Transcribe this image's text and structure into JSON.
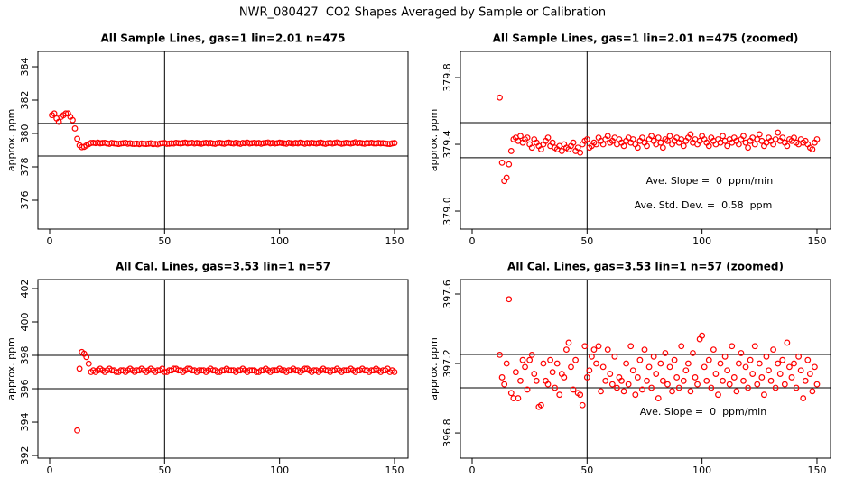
{
  "title": "NWR_080427  CO2 Shapes Averaged by Sample or Calibration",
  "chart_data": [
    {
      "type": "scatter",
      "title": "All Sample Lines, gas=1 lin=2.01 n=475",
      "ylabel": "approx. ppm",
      "color": "#ff0000",
      "xlim": [
        -5.1,
        155.9
      ],
      "ylim": [
        374.27,
        384.92
      ],
      "xticks": [
        0,
        50,
        100,
        150
      ],
      "yticks": [
        376,
        378,
        380,
        382,
        384
      ],
      "hlines": [
        380.6,
        378.65
      ],
      "vline": 50,
      "annotations": [],
      "x": [
        1,
        2,
        3,
        4,
        5,
        6,
        7,
        8,
        9,
        10,
        11,
        12,
        13,
        14,
        15,
        16,
        17,
        18,
        19,
        20,
        21,
        22,
        23,
        24,
        25,
        26,
        27,
        28,
        29,
        30,
        31,
        32,
        33,
        34,
        35,
        36,
        37,
        38,
        39,
        40,
        41,
        42,
        43,
        44,
        45,
        46,
        47,
        48,
        49,
        50,
        51,
        52,
        53,
        54,
        55,
        56,
        57,
        58,
        59,
        60,
        61,
        62,
        63,
        64,
        65,
        66,
        67,
        68,
        69,
        70,
        71,
        72,
        73,
        74,
        75,
        76,
        77,
        78,
        79,
        80,
        81,
        82,
        83,
        84,
        85,
        86,
        87,
        88,
        89,
        90,
        91,
        92,
        93,
        94,
        95,
        96,
        97,
        98,
        99,
        100,
        101,
        102,
        103,
        104,
        105,
        106,
        107,
        108,
        109,
        110,
        111,
        112,
        113,
        114,
        115,
        116,
        117,
        118,
        119,
        120,
        121,
        122,
        123,
        124,
        125,
        126,
        127,
        128,
        129,
        130,
        131,
        132,
        133,
        134,
        135,
        136,
        137,
        138,
        139,
        140,
        141,
        142,
        143,
        144,
        145,
        146,
        147,
        148,
        149,
        150
      ],
      "values": [
        381.1,
        381.2,
        380.9,
        380.7,
        381.0,
        381.1,
        381.2,
        381.2,
        381.0,
        380.8,
        380.3,
        379.68,
        379.29,
        379.18,
        379.2,
        379.28,
        379.36,
        379.43,
        379.44,
        379.42,
        379.45,
        379.41,
        379.43,
        379.44,
        379.4,
        379.38,
        379.43,
        379.41,
        379.39,
        379.37,
        379.4,
        379.42,
        379.44,
        379.39,
        379.41,
        379.38,
        379.37,
        379.39,
        379.36,
        379.4,
        379.38,
        379.37,
        379.39,
        379.41,
        379.36,
        379.38,
        379.35,
        379.4,
        379.42,
        379.43,
        379.38,
        379.39,
        379.41,
        379.4,
        379.44,
        379.42,
        379.4,
        379.43,
        379.45,
        379.41,
        379.42,
        379.44,
        379.4,
        379.43,
        379.41,
        379.39,
        379.42,
        379.44,
        379.41,
        379.43,
        379.4,
        379.38,
        379.42,
        379.44,
        379.41,
        379.39,
        379.43,
        379.45,
        379.42,
        379.4,
        379.44,
        379.41,
        379.38,
        379.43,
        379.42,
        379.45,
        379.4,
        379.42,
        379.44,
        379.41,
        379.43,
        379.39,
        379.42,
        379.44,
        379.46,
        379.41,
        379.43,
        379.4,
        379.42,
        379.45,
        379.43,
        379.41,
        379.39,
        379.44,
        379.42,
        379.4,
        379.43,
        379.41,
        379.45,
        379.42,
        379.39,
        379.43,
        379.41,
        379.44,
        379.42,
        379.4,
        379.43,
        379.45,
        379.41,
        379.38,
        379.42,
        379.44,
        379.4,
        379.43,
        379.46,
        379.42,
        379.39,
        379.41,
        379.44,
        379.42,
        379.4,
        379.43,
        379.47,
        379.42,
        379.44,
        379.41,
        379.39,
        379.43,
        379.42,
        379.44,
        379.41,
        379.4,
        379.43,
        379.41,
        379.42,
        379.4,
        379.38,
        379.37,
        379.41,
        379.43
      ]
    },
    {
      "type": "scatter",
      "title": "All Sample Lines, gas=1 lin=2.01 n=475 (zoomed)",
      "ylabel": "approx. ppm",
      "color": "#ff0000",
      "xlim": [
        -5.1,
        155.9
      ],
      "ylim": [
        378.892,
        379.957
      ],
      "xticks": [
        0,
        50,
        100,
        150
      ],
      "yticks": [
        {
          "value": 379,
          "label": "379.0"
        },
        379.4,
        379.8
      ],
      "hlines": [
        379.53,
        379.32
      ],
      "vline": 50,
      "annotations": [
        "Ave. Slope =  0  ppm/min",
        "Ave. Std. Dev. =  0.58  ppm"
      ],
      "x": [
        12,
        13,
        14,
        15,
        16,
        17,
        18,
        19,
        20,
        21,
        22,
        23,
        24,
        25,
        26,
        27,
        28,
        29,
        30,
        31,
        32,
        33,
        34,
        35,
        36,
        37,
        38,
        39,
        40,
        41,
        42,
        43,
        44,
        45,
        46,
        47,
        48,
        49,
        50,
        51,
        52,
        53,
        54,
        55,
        56,
        57,
        58,
        59,
        60,
        61,
        62,
        63,
        64,
        65,
        66,
        67,
        68,
        69,
        70,
        71,
        72,
        73,
        74,
        75,
        76,
        77,
        78,
        79,
        80,
        81,
        82,
        83,
        84,
        85,
        86,
        87,
        88,
        89,
        90,
        91,
        92,
        93,
        94,
        95,
        96,
        97,
        98,
        99,
        100,
        101,
        102,
        103,
        104,
        105,
        106,
        107,
        108,
        109,
        110,
        111,
        112,
        113,
        114,
        115,
        116,
        117,
        118,
        119,
        120,
        121,
        122,
        123,
        124,
        125,
        126,
        127,
        128,
        129,
        130,
        131,
        132,
        133,
        134,
        135,
        136,
        137,
        138,
        139,
        140,
        141,
        142,
        143,
        144,
        145,
        146,
        147,
        148,
        149,
        150
      ],
      "values": [
        379.68,
        379.29,
        379.18,
        379.2,
        379.28,
        379.36,
        379.43,
        379.44,
        379.42,
        379.45,
        379.41,
        379.43,
        379.44,
        379.4,
        379.38,
        379.43,
        379.41,
        379.39,
        379.37,
        379.4,
        379.42,
        379.44,
        379.39,
        379.41,
        379.38,
        379.37,
        379.39,
        379.36,
        379.4,
        379.38,
        379.37,
        379.39,
        379.41,
        379.36,
        379.38,
        379.35,
        379.4,
        379.42,
        379.43,
        379.38,
        379.39,
        379.41,
        379.4,
        379.44,
        379.42,
        379.4,
        379.43,
        379.45,
        379.41,
        379.42,
        379.44,
        379.4,
        379.43,
        379.41,
        379.39,
        379.42,
        379.44,
        379.41,
        379.43,
        379.4,
        379.38,
        379.42,
        379.44,
        379.41,
        379.39,
        379.43,
        379.45,
        379.42,
        379.4,
        379.44,
        379.41,
        379.38,
        379.43,
        379.42,
        379.45,
        379.4,
        379.42,
        379.44,
        379.41,
        379.43,
        379.39,
        379.42,
        379.44,
        379.46,
        379.41,
        379.43,
        379.4,
        379.42,
        379.45,
        379.43,
        379.41,
        379.39,
        379.44,
        379.42,
        379.4,
        379.43,
        379.41,
        379.45,
        379.42,
        379.39,
        379.43,
        379.41,
        379.44,
        379.42,
        379.4,
        379.43,
        379.45,
        379.41,
        379.38,
        379.42,
        379.44,
        379.4,
        379.43,
        379.46,
        379.42,
        379.39,
        379.41,
        379.44,
        379.42,
        379.4,
        379.43,
        379.47,
        379.42,
        379.44,
        379.41,
        379.39,
        379.43,
        379.42,
        379.44,
        379.41,
        379.4,
        379.43,
        379.41,
        379.42,
        379.4,
        379.38,
        379.37,
        379.41,
        379.43
      ]
    },
    {
      "type": "scatter",
      "title": "All Cal. Lines, gas=3.53 lin=1 n=57",
      "ylabel": "approx. ppm",
      "color": "#ff0000",
      "xlim": [
        -5.1,
        155.9
      ],
      "ylim": [
        391.84,
        402.54
      ],
      "xticks": [
        0,
        50,
        100,
        150
      ],
      "yticks": [
        392,
        394,
        396,
        398,
        400,
        402
      ],
      "hlines": [
        398.0,
        396.0
      ],
      "vline": 50,
      "annotations": [],
      "x": [
        12,
        13,
        14,
        15,
        16,
        17,
        18,
        19,
        20,
        21,
        22,
        23,
        24,
        25,
        26,
        27,
        28,
        29,
        30,
        31,
        32,
        33,
        34,
        35,
        36,
        37,
        38,
        39,
        40,
        41,
        42,
        43,
        44,
        45,
        46,
        47,
        48,
        49,
        50,
        51,
        52,
        53,
        54,
        55,
        56,
        57,
        58,
        59,
        60,
        61,
        62,
        63,
        64,
        65,
        66,
        67,
        68,
        69,
        70,
        71,
        72,
        73,
        74,
        75,
        76,
        77,
        78,
        79,
        80,
        81,
        82,
        83,
        84,
        85,
        86,
        87,
        88,
        89,
        90,
        91,
        92,
        93,
        94,
        95,
        96,
        97,
        98,
        99,
        100,
        101,
        102,
        103,
        104,
        105,
        106,
        107,
        108,
        109,
        110,
        111,
        112,
        113,
        114,
        115,
        116,
        117,
        118,
        119,
        120,
        121,
        122,
        123,
        124,
        125,
        126,
        127,
        128,
        129,
        130,
        131,
        132,
        133,
        134,
        135,
        136,
        137,
        138,
        139,
        140,
        141,
        142,
        143,
        144,
        145,
        146,
        147,
        148,
        149,
        150
      ],
      "values": [
        393.5,
        397.2,
        398.2,
        398.1,
        397.9,
        397.5,
        397.0,
        397.1,
        397.0,
        397.1,
        397.2,
        397.1,
        397.0,
        397.1,
        397.2,
        397.1,
        397.1,
        397.0,
        397.0,
        397.1,
        397.1,
        397.0,
        397.1,
        397.2,
        397.1,
        397.0,
        397.1,
        397.1,
        397.2,
        397.1,
        397.0,
        397.1,
        397.2,
        397.1,
        397.0,
        397.1,
        397.1,
        397.2,
        397.0,
        397.0,
        397.1,
        397.1,
        397.2,
        397.2,
        397.1,
        397.1,
        397.0,
        397.1,
        397.2,
        397.2,
        397.1,
        397.1,
        397.0,
        397.1,
        397.1,
        397.1,
        397.0,
        397.1,
        397.2,
        397.1,
        397.1,
        397.0,
        397.0,
        397.1,
        397.1,
        397.2,
        397.1,
        397.1,
        397.1,
        397.0,
        397.1,
        397.1,
        397.2,
        397.1,
        397.0,
        397.1,
        397.1,
        397.1,
        397.0,
        397.0,
        397.1,
        397.1,
        397.2,
        397.1,
        397.0,
        397.1,
        397.1,
        397.1,
        397.2,
        397.1,
        397.1,
        397.0,
        397.1,
        397.1,
        397.2,
        397.1,
        397.1,
        397.0,
        397.1,
        397.2,
        397.2,
        397.1,
        397.0,
        397.1,
        397.1,
        397.0,
        397.1,
        397.2,
        397.1,
        397.1,
        397.0,
        397.1,
        397.1,
        397.2,
        397.1,
        397.0,
        397.1,
        397.1,
        397.1,
        397.2,
        397.1,
        397.0,
        397.1,
        397.1,
        397.2,
        397.1,
        397.1,
        397.0,
        397.1,
        397.1,
        397.2,
        397.1,
        397.0,
        397.1,
        397.1,
        397.2,
        397.0,
        397.1,
        397.0
      ]
    },
    {
      "type": "scatter",
      "title": "All Cal. Lines, gas=3.53 lin=1 n=57 (zoomed)",
      "ylabel": "approx. ppm",
      "color": "#ff0000",
      "xlim": [
        -5.1,
        155.9
      ],
      "ylim": [
        396.655,
        397.683
      ],
      "xticks": [
        0,
        50,
        100,
        150
      ],
      "yticks": [
        396.8,
        397.2,
        397.6
      ],
      "hlines": [
        397.252,
        397.06
      ],
      "vline": 50,
      "annotations": [
        "Ave. Slope =  0  ppm/min"
      ],
      "x": [
        12,
        13,
        14,
        15,
        16,
        17,
        18,
        19,
        20,
        21,
        22,
        23,
        24,
        25,
        26,
        27,
        28,
        29,
        30,
        31,
        32,
        33,
        34,
        35,
        36,
        37,
        38,
        39,
        40,
        41,
        42,
        43,
        44,
        45,
        46,
        47,
        48,
        49,
        50,
        51,
        52,
        53,
        54,
        55,
        56,
        57,
        58,
        59,
        60,
        61,
        62,
        63,
        64,
        65,
        66,
        67,
        68,
        69,
        70,
        71,
        72,
        73,
        74,
        75,
        76,
        77,
        78,
        79,
        80,
        81,
        82,
        83,
        84,
        85,
        86,
        87,
        88,
        89,
        90,
        91,
        92,
        93,
        94,
        95,
        96,
        97,
        98,
        99,
        100,
        101,
        102,
        103,
        104,
        105,
        106,
        107,
        108,
        109,
        110,
        111,
        112,
        113,
        114,
        115,
        116,
        117,
        118,
        119,
        120,
        121,
        122,
        123,
        124,
        125,
        126,
        127,
        128,
        129,
        130,
        131,
        132,
        133,
        134,
        135,
        136,
        137,
        138,
        139,
        140,
        141,
        142,
        143,
        144,
        145,
        146,
        147,
        148,
        149,
        150
      ],
      "values": [
        397.25,
        397.12,
        397.08,
        397.2,
        397.57,
        397.03,
        397.0,
        397.15,
        397.0,
        397.1,
        397.22,
        397.18,
        397.05,
        397.22,
        397.25,
        397.14,
        397.1,
        396.95,
        396.96,
        397.2,
        397.1,
        397.08,
        397.22,
        397.15,
        397.06,
        397.2,
        397.02,
        397.14,
        397.12,
        397.28,
        397.32,
        397.18,
        397.05,
        397.22,
        397.03,
        397.02,
        396.96,
        397.3,
        397.12,
        397.16,
        397.24,
        397.28,
        397.2,
        397.3,
        397.04,
        397.18,
        397.1,
        397.28,
        397.14,
        397.08,
        397.24,
        397.06,
        397.12,
        397.1,
        397.04,
        397.2,
        397.08,
        397.3,
        397.16,
        397.02,
        397.12,
        397.22,
        397.05,
        397.28,
        397.1,
        397.18,
        397.06,
        397.24,
        397.14,
        397.0,
        397.2,
        397.1,
        397.26,
        397.08,
        397.18,
        397.04,
        397.22,
        397.12,
        397.06,
        397.3,
        397.1,
        397.16,
        397.2,
        397.04,
        397.26,
        397.12,
        397.08,
        397.34,
        397.36,
        397.18,
        397.1,
        397.22,
        397.06,
        397.28,
        397.14,
        397.02,
        397.2,
        397.1,
        397.24,
        397.16,
        397.08,
        397.3,
        397.12,
        397.04,
        397.2,
        397.26,
        397.1,
        397.18,
        397.06,
        397.22,
        397.14,
        397.3,
        397.08,
        397.2,
        397.12,
        397.02,
        397.24,
        397.16,
        397.1,
        397.28,
        397.06,
        397.2,
        397.14,
        397.22,
        397.08,
        397.32,
        397.18,
        397.12,
        397.2,
        397.06,
        397.24,
        397.16,
        397.0,
        397.1,
        397.22,
        397.14,
        397.04,
        397.18,
        397.08
      ]
    }
  ]
}
